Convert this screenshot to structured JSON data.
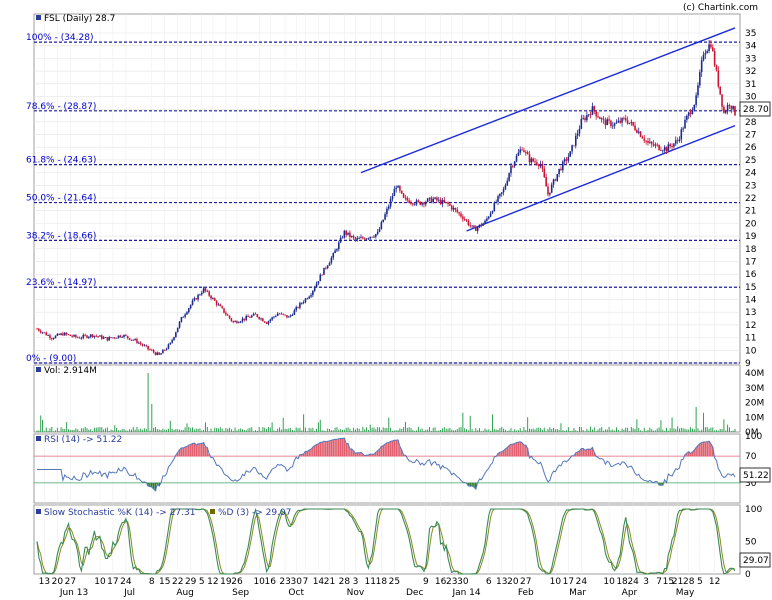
{
  "copyright": "(c) Chartink.com",
  "chart_data": [
    {
      "type": "candlestick",
      "title": "FSL (Daily) 28.7",
      "ylim": [
        9,
        35
      ],
      "y_ticks": [
        9,
        10,
        11,
        12,
        13,
        14,
        15,
        16,
        17,
        18,
        19,
        20,
        21,
        22,
        23,
        24,
        25,
        26,
        27,
        28,
        29,
        30,
        31,
        32,
        33,
        34,
        35
      ],
      "last_price": "28.70",
      "fib_levels": [
        {
          "label": "100% - (34.28)",
          "value": 34.28
        },
        {
          "label": "78.6% - (28.87)",
          "value": 28.87
        },
        {
          "label": "61.8% - (24.63)",
          "value": 24.63
        },
        {
          "label": "50.0% - (21.64)",
          "value": 21.64
        },
        {
          "label": "38.2% - (18.66)",
          "value": 18.66
        },
        {
          "label": "23.6% - (14.97)",
          "value": 14.97
        },
        {
          "label": "0% - (9.00)",
          "value": 9.0
        }
      ],
      "price_path": [
        [
          0,
          11.7
        ],
        [
          8,
          11.0
        ],
        [
          14,
          11.3
        ],
        [
          22,
          11.0
        ],
        [
          30,
          11.2
        ],
        [
          38,
          10.9
        ],
        [
          46,
          11.2
        ],
        [
          54,
          10.7
        ],
        [
          60,
          10.1
        ],
        [
          66,
          9.6
        ],
        [
          72,
          10.5
        ],
        [
          78,
          12.5
        ],
        [
          84,
          13.8
        ],
        [
          90,
          14.8
        ],
        [
          94,
          14.2
        ],
        [
          100,
          13.2
        ],
        [
          106,
          12.2
        ],
        [
          112,
          12.5
        ],
        [
          118,
          12.8
        ],
        [
          124,
          12.2
        ],
        [
          130,
          12.9
        ],
        [
          136,
          12.6
        ],
        [
          142,
          13.6
        ],
        [
          148,
          14.5
        ],
        [
          154,
          16.1
        ],
        [
          160,
          17.5
        ],
        [
          166,
          19.3
        ],
        [
          172,
          18.7
        ],
        [
          178,
          18.9
        ],
        [
          184,
          19.2
        ],
        [
          190,
          21.4
        ],
        [
          194,
          23.0
        ],
        [
          198,
          21.9
        ],
        [
          206,
          21.6
        ],
        [
          214,
          21.9
        ],
        [
          222,
          21.5
        ],
        [
          230,
          20.5
        ],
        [
          236,
          19.5
        ],
        [
          242,
          20.1
        ],
        [
          248,
          21.7
        ],
        [
          252,
          22.6
        ],
        [
          256,
          24.5
        ],
        [
          262,
          26.0
        ],
        [
          266,
          25.0
        ],
        [
          272,
          24.7
        ],
        [
          276,
          22.3
        ],
        [
          282,
          24.2
        ],
        [
          288,
          25.5
        ],
        [
          294,
          28.0
        ],
        [
          300,
          29.0
        ],
        [
          306,
          28.0
        ],
        [
          312,
          27.8
        ],
        [
          318,
          28.2
        ],
        [
          324,
          27.4
        ],
        [
          330,
          26.3
        ],
        [
          336,
          26.0
        ],
        [
          340,
          25.9
        ],
        [
          346,
          26.5
        ],
        [
          350,
          28.0
        ],
        [
          356,
          29.8
        ],
        [
          360,
          33.5
        ],
        [
          364,
          34.2
        ],
        [
          368,
          31.0
        ],
        [
          371,
          28.7
        ],
        [
          374,
          29.5
        ],
        [
          377,
          28.7
        ]
      ],
      "channel": {
        "upper": [
          [
            175,
            24.0
          ],
          [
            377,
            35.4
          ]
        ],
        "lower": [
          [
            232,
            19.4
          ],
          [
            377,
            27.7
          ]
        ]
      }
    },
    {
      "type": "bar",
      "title": "Vol: 2.914M",
      "y_ticks": [
        "0M",
        "10M",
        "20M",
        "30M",
        "40M"
      ],
      "ylim": [
        0,
        40
      ]
    },
    {
      "type": "line",
      "title": "RSI (14) -> 51.22",
      "ylim": [
        0,
        100
      ],
      "y_ticks": [
        "100",
        "70",
        "30"
      ],
      "reference_lines": [
        70,
        30
      ],
      "last_value": "51.22"
    },
    {
      "type": "line",
      "title_k": "Slow Stochastic %K (14) -> 27.31",
      "title_d": "%D (3) -> 29.07",
      "ylim": [
        0,
        100
      ],
      "y_ticks": [
        "100",
        "50",
        "0"
      ],
      "last_value": "29.07"
    }
  ],
  "x_axis": {
    "day_labels": [
      {
        "t": 4,
        "label": "13"
      },
      {
        "t": 11,
        "label": "20"
      },
      {
        "t": 18,
        "label": "27"
      },
      {
        "t": 34,
        "label": "10"
      },
      {
        "t": 41,
        "label": "17"
      },
      {
        "t": 48,
        "label": "24"
      },
      {
        "t": 62,
        "label": "8"
      },
      {
        "t": 69,
        "label": "15"
      },
      {
        "t": 76,
        "label": "22"
      },
      {
        "t": 83,
        "label": "29"
      },
      {
        "t": 89,
        "label": "5"
      },
      {
        "t": 95,
        "label": "12"
      },
      {
        "t": 102,
        "label": "19"
      },
      {
        "t": 108,
        "label": "26"
      },
      {
        "t": 120,
        "label": "10"
      },
      {
        "t": 126,
        "label": "16"
      },
      {
        "t": 134,
        "label": "23"
      },
      {
        "t": 140,
        "label": "30"
      },
      {
        "t": 145,
        "label": "7"
      },
      {
        "t": 152,
        "label": "14"
      },
      {
        "t": 158,
        "label": "21"
      },
      {
        "t": 166,
        "label": "28"
      },
      {
        "t": 172,
        "label": "3"
      },
      {
        "t": 180,
        "label": "11"
      },
      {
        "t": 186,
        "label": "18"
      },
      {
        "t": 193,
        "label": "25"
      },
      {
        "t": 210,
        "label": "9"
      },
      {
        "t": 218,
        "label": "16"
      },
      {
        "t": 224,
        "label": "23"
      },
      {
        "t": 230,
        "label": "30"
      },
      {
        "t": 244,
        "label": "6"
      },
      {
        "t": 251,
        "label": "13"
      },
      {
        "t": 257,
        "label": "20"
      },
      {
        "t": 264,
        "label": "27"
      },
      {
        "t": 280,
        "label": "10"
      },
      {
        "t": 287,
        "label": "17"
      },
      {
        "t": 294,
        "label": "24"
      },
      {
        "t": 309,
        "label": "10"
      },
      {
        "t": 316,
        "label": "18"
      },
      {
        "t": 322,
        "label": "24"
      },
      {
        "t": 329,
        "label": "3"
      },
      {
        "t": 336,
        "label": "7"
      },
      {
        "t": 341,
        "label": "15"
      },
      {
        "t": 346,
        "label": "21"
      },
      {
        "t": 352,
        "label": "28"
      },
      {
        "t": 358,
        "label": "5"
      },
      {
        "t": 366,
        "label": "12"
      }
    ],
    "month_labels": [
      {
        "t": 20,
        "label": "Jun 13"
      },
      {
        "t": 50,
        "label": "Jul"
      },
      {
        "t": 80,
        "label": "Aug"
      },
      {
        "t": 110,
        "label": "Sep"
      },
      {
        "t": 140,
        "label": "Oct"
      },
      {
        "t": 172,
        "label": "Nov"
      },
      {
        "t": 204,
        "label": "Dec"
      },
      {
        "t": 232,
        "label": "Jan 14"
      },
      {
        "t": 264,
        "label": "Feb"
      },
      {
        "t": 292,
        "label": "Mar"
      },
      {
        "t": 320,
        "label": "Apr"
      },
      {
        "t": 350,
        "label": "May"
      }
    ]
  }
}
